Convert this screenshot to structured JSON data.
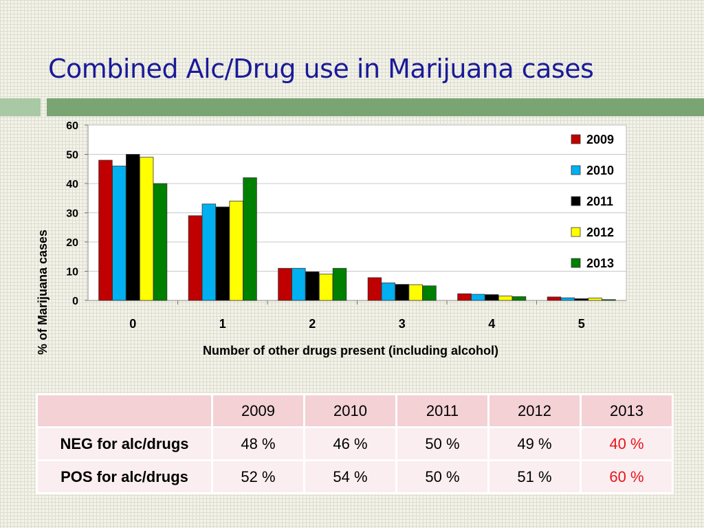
{
  "slide": {
    "title": "Combined Alc/Drug use in Marijuana cases"
  },
  "colors": {
    "title": "#1a1a99",
    "band_light": "#a9c8a4",
    "band_dark": "#78a571",
    "highlight": "#e8141b",
    "table_header": "#f3d1d5",
    "table_body": "#fbeef0"
  },
  "chart_data": {
    "type": "bar",
    "title": "",
    "xlabel": "Number of other drugs present  (including alcohol)",
    "ylabel": "%  of  Marijuana  cases",
    "ylim": [
      0,
      60
    ],
    "yticks": [
      0,
      10,
      20,
      30,
      40,
      50,
      60
    ],
    "grid": true,
    "legend": "right",
    "categories": [
      "0",
      "1",
      "2",
      "3",
      "4",
      "5"
    ],
    "series": [
      {
        "name": "2009",
        "color": "#c00000",
        "values": [
          48,
          29,
          11,
          7.8,
          2.3,
          1.2
        ]
      },
      {
        "name": "2010",
        "color": "#00b0f0",
        "values": [
          46,
          33,
          11,
          6,
          2.1,
          0.9
        ]
      },
      {
        "name": "2011",
        "color": "#000000",
        "values": [
          50,
          32,
          9.8,
          5.5,
          2.0,
          0.6
        ]
      },
      {
        "name": "2012",
        "color": "#ffff00",
        "values": [
          49,
          34,
          9,
          5.4,
          1.5,
          0.8
        ]
      },
      {
        "name": "2013",
        "color": "#008000",
        "values": [
          40,
          42,
          11,
          5,
          1.3,
          0.3
        ]
      }
    ]
  },
  "table": {
    "header": [
      "",
      "2009",
      "2010",
      "2011",
      "2012",
      "2013"
    ],
    "rows": [
      {
        "label": "NEG for alc/drugs",
        "values": [
          "48 %",
          "46 %",
          "50 %",
          "49 %",
          "40 %"
        ]
      },
      {
        "label": "POS for alc/drugs",
        "values": [
          "52 %",
          "54 %",
          "50 %",
          "51 %",
          "60 %"
        ]
      }
    ]
  }
}
